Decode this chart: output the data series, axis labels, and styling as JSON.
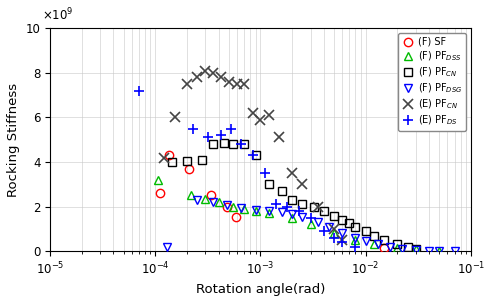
{
  "title": "",
  "xlabel": "Rotation angle(rad)",
  "ylabel": "Rocking Stiffness",
  "F_SF": {
    "x": [
      0.00011,
      0.000135,
      0.00021,
      0.00034,
      0.00048,
      0.00058,
      0.015
    ],
    "y": [
      2600000000.0,
      4300000000.0,
      3700000000.0,
      2500000000.0,
      2000000000.0,
      1550000000.0,
      150000000.0
    ],
    "color": "#ff0000",
    "marker": "o",
    "label": "(F) SF",
    "markersize": 6
  },
  "F_PF_DSS": {
    "x": [
      0.000105,
      0.00022,
      0.0003,
      0.0004,
      0.00055,
      0.0007,
      0.0009,
      0.0012,
      0.002,
      0.003,
      0.005,
      0.008,
      0.012,
      0.02,
      0.03,
      0.05
    ],
    "y": [
      3200000000.0,
      2500000000.0,
      2350000000.0,
      2200000000.0,
      2000000000.0,
      1900000000.0,
      1800000000.0,
      1700000000.0,
      1500000000.0,
      1200000000.0,
      800000000.0,
      500000000.0,
      300000000.0,
      150000000.0,
      80000000.0,
      30000000.0
    ],
    "color": "#00bb00",
    "marker": "^",
    "label": "(F) PF$_{DSS}$",
    "markersize": 6
  },
  "F_PF_CN": {
    "x": [
      0.000145,
      0.0002,
      0.00028,
      0.00035,
      0.00045,
      0.00055,
      0.0007,
      0.0009,
      0.0012,
      0.0016,
      0.002,
      0.0025,
      0.0032,
      0.004,
      0.005,
      0.006,
      0.007,
      0.008,
      0.01,
      0.012,
      0.015,
      0.02,
      0.025,
      0.03
    ],
    "y": [
      4000000000.0,
      4050000000.0,
      4100000000.0,
      4800000000.0,
      4850000000.0,
      4800000000.0,
      4800000000.0,
      4300000000.0,
      3000000000.0,
      2700000000.0,
      2300000000.0,
      2100000000.0,
      2000000000.0,
      1800000000.0,
      1600000000.0,
      1400000000.0,
      1250000000.0,
      1100000000.0,
      900000000.0,
      700000000.0,
      500000000.0,
      300000000.0,
      200000000.0,
      120000000.0
    ],
    "color": "#000000",
    "marker": "s",
    "label": "(F) PF$_{CN}$",
    "markersize": 6
  },
  "F_PF_DSG": {
    "x": [
      0.00013,
      0.00025,
      0.00035,
      0.00048,
      0.00065,
      0.0009,
      0.0012,
      0.0016,
      0.002,
      0.0025,
      0.0035,
      0.0045,
      0.006,
      0.008,
      0.01,
      0.013,
      0.017,
      0.022,
      0.03,
      0.04,
      0.05,
      0.07
    ],
    "y": [
      200000000.0,
      2300000000.0,
      2200000000.0,
      2050000000.0,
      1950000000.0,
      1850000000.0,
      1800000000.0,
      1750000000.0,
      1650000000.0,
      1550000000.0,
      1300000000.0,
      1100000000.0,
      800000000.0,
      600000000.0,
      450000000.0,
      300000000.0,
      200000000.0,
      100000000.0,
      60000000.0,
      30000000.0,
      15000000.0,
      5000000.0
    ],
    "color": "#0000ff",
    "marker": "v",
    "label": "(F) PF$_{DSG}$",
    "markersize": 6
  },
  "E_PF_CN": {
    "x": [
      0.00012,
      0.000155,
      0.0002,
      0.00025,
      0.0003,
      0.00035,
      0.00042,
      0.0005,
      0.0006,
      0.0007,
      0.00085,
      0.001,
      0.0012,
      0.0015,
      0.002,
      0.0025,
      0.0035,
      0.005,
      0.006
    ],
    "y": [
      4200000000.0,
      6000000000.0,
      7500000000.0,
      7800000000.0,
      8100000000.0,
      8000000000.0,
      7800000000.0,
      7600000000.0,
      7500000000.0,
      7500000000.0,
      6200000000.0,
      5900000000.0,
      6100000000.0,
      5100000000.0,
      3500000000.0,
      3000000000.0,
      2000000000.0,
      1000000000.0,
      500000000.0
    ],
    "color": "#444444",
    "marker": "x",
    "label": "(E) PF$_{CN}$",
    "markersize": 7,
    "markeredgewidth": 1.2
  },
  "E_PF_DS": {
    "x": [
      7e-05,
      0.00023,
      0.00032,
      0.00042,
      0.00052,
      0.00065,
      0.00085,
      0.0011,
      0.0014,
      0.0018,
      0.0023,
      0.003,
      0.004,
      0.005,
      0.006,
      0.008
    ],
    "y": [
      7200000000.0,
      5500000000.0,
      5100000000.0,
      5200000000.0,
      5500000000.0,
      4800000000.0,
      4300000000.0,
      3500000000.0,
      2100000000.0,
      2000000000.0,
      1800000000.0,
      1500000000.0,
      900000000.0,
      600000000.0,
      400000000.0,
      200000000.0
    ],
    "color": "#0000ff",
    "marker": "P",
    "label": "(E) PF$_{DS}$",
    "markersize": 7,
    "markeredgewidth": 1.2
  },
  "fig_width": 4.92,
  "fig_height": 3.03,
  "dpi": 100,
  "xlim": [
    1e-05,
    0.1
  ],
  "ylim": [
    0,
    10000000000.0
  ],
  "yticks": [
    0,
    2000000000.0,
    4000000000.0,
    6000000000.0,
    8000000000.0,
    10000000000.0
  ],
  "ytick_labels": [
    "0",
    "2",
    "4",
    "6",
    "8",
    "10"
  ],
  "legend_fontsize": 7.0,
  "axis_fontsize": 9.5,
  "tick_fontsize": 8.5
}
